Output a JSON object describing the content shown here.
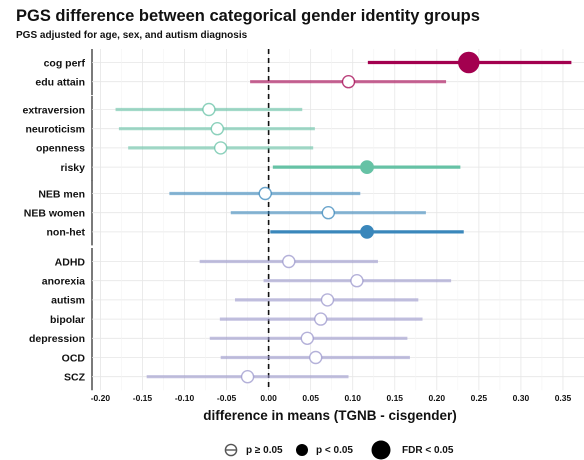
{
  "title": "PGS difference between categorical gender identity groups",
  "subtitle": "PGS adjusted for age, sex, and autism diagnosis",
  "legend": {
    "items": [
      {
        "label": "p ≥ 0.05",
        "marker": "open-circle"
      },
      {
        "label": "p < 0.05",
        "marker": "filled-circle"
      },
      {
        "label": "FDR < 0.05",
        "marker": "large-filled-circle"
      }
    ]
  },
  "chart_data": {
    "type": "forest",
    "xlabel": "difference in means (TGNB - cisgender)",
    "xlim": [
      -0.21,
      0.375
    ],
    "xticks": [
      -0.2,
      -0.15,
      -0.1,
      -0.05,
      0.0,
      0.05,
      0.1,
      0.15,
      0.2,
      0.25,
      0.3,
      0.35
    ],
    "xtick_labels": [
      "-0.20",
      "-0.15",
      "-0.10",
      "-0.05",
      "0.00",
      "0.05",
      "0.10",
      "0.15",
      "0.20",
      "0.25",
      "0.30",
      "0.35"
    ],
    "reference_line": 0,
    "grid": true,
    "legend_position": "bottom",
    "groups": [
      {
        "color": "#a3004f",
        "rows": [
          {
            "label": "cog perf",
            "estimate": 0.238,
            "lower": 0.118,
            "upper": 0.36,
            "significance": "FDR < 0.05"
          },
          {
            "label": "edu attain",
            "estimate": 0.095,
            "lower": -0.022,
            "upper": 0.211,
            "significance": "p ≥ 0.05"
          }
        ]
      },
      {
        "color": "#66c2a5",
        "rows": [
          {
            "label": "extraversion",
            "estimate": -0.071,
            "lower": -0.182,
            "upper": 0.04,
            "significance": "p ≥ 0.05"
          },
          {
            "label": "neuroticism",
            "estimate": -0.061,
            "lower": -0.178,
            "upper": 0.055,
            "significance": "p ≥ 0.05"
          },
          {
            "label": "openness",
            "estimate": -0.057,
            "lower": -0.167,
            "upper": 0.053,
            "significance": "p ≥ 0.05"
          },
          {
            "label": "risky",
            "estimate": 0.117,
            "lower": 0.005,
            "upper": 0.228,
            "significance": "p < 0.05"
          }
        ]
      },
      {
        "color": "#3a87bb",
        "rows": [
          {
            "label": "NEB men",
            "estimate": -0.004,
            "lower": -0.118,
            "upper": 0.109,
            "significance": "p ≥ 0.05"
          },
          {
            "label": "NEB women",
            "estimate": 0.071,
            "lower": -0.045,
            "upper": 0.187,
            "significance": "p ≥ 0.05"
          },
          {
            "label": "non-het",
            "estimate": 0.117,
            "lower": 0.002,
            "upper": 0.232,
            "significance": "p < 0.05"
          }
        ]
      },
      {
        "color": "#9b97cc",
        "rows": [
          {
            "label": "ADHD",
            "estimate": 0.024,
            "lower": -0.082,
            "upper": 0.13,
            "significance": "p ≥ 0.05"
          },
          {
            "label": "anorexia",
            "estimate": 0.105,
            "lower": -0.006,
            "upper": 0.217,
            "significance": "p ≥ 0.05"
          },
          {
            "label": "autism",
            "estimate": 0.07,
            "lower": -0.04,
            "upper": 0.178,
            "significance": "p ≥ 0.05"
          },
          {
            "label": "bipolar",
            "estimate": 0.062,
            "lower": -0.058,
            "upper": 0.183,
            "significance": "p ≥ 0.05"
          },
          {
            "label": "depression",
            "estimate": 0.046,
            "lower": -0.07,
            "upper": 0.165,
            "significance": "p ≥ 0.05"
          },
          {
            "label": "OCD",
            "estimate": 0.056,
            "lower": -0.057,
            "upper": 0.168,
            "significance": "p ≥ 0.05"
          },
          {
            "label": "SCZ",
            "estimate": -0.025,
            "lower": -0.145,
            "upper": 0.095,
            "significance": "p ≥ 0.05"
          }
        ]
      }
    ]
  }
}
